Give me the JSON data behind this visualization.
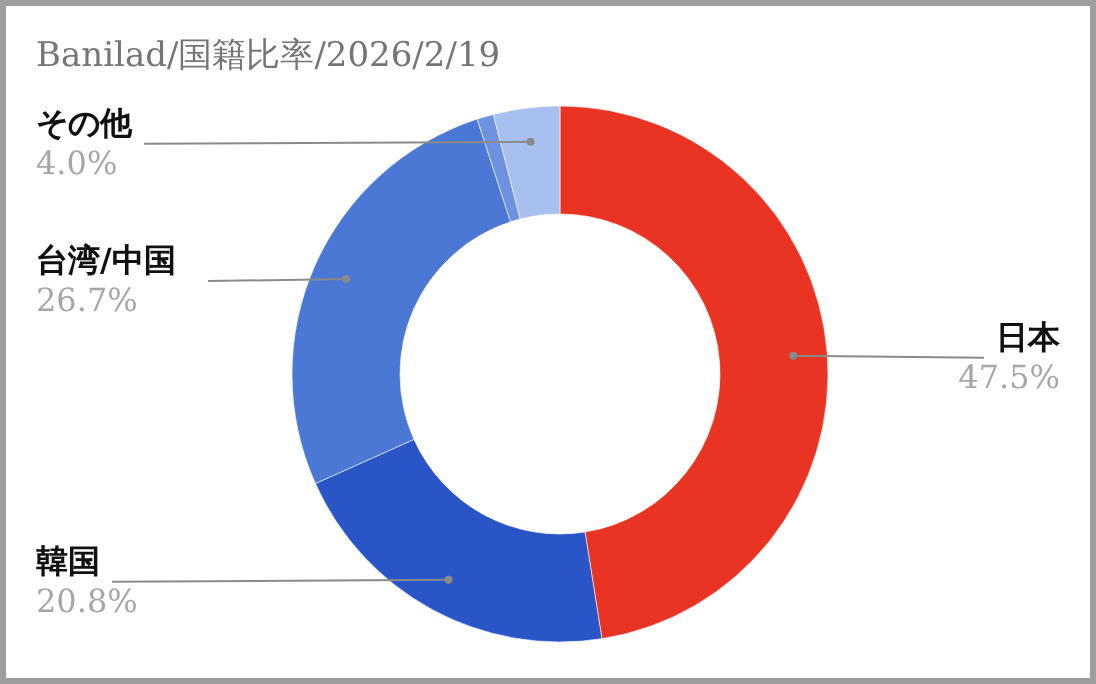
{
  "chart_data": {
    "type": "donut",
    "title": "Banilad/国籍比率/2026/2/19",
    "categories": [
      "日本",
      "韓国",
      "台湾/中国",
      null,
      "その他"
    ],
    "values": [
      47.5,
      20.8,
      26.7,
      1.0,
      4.0
    ],
    "colors": [
      "#e93323",
      "#2a55c6",
      "#4a78d4",
      "#6d93e0",
      "#a8c0f0"
    ],
    "value_labels": [
      "47.5%",
      "20.8%",
      "26.7%",
      null,
      "4.0%"
    ]
  }
}
